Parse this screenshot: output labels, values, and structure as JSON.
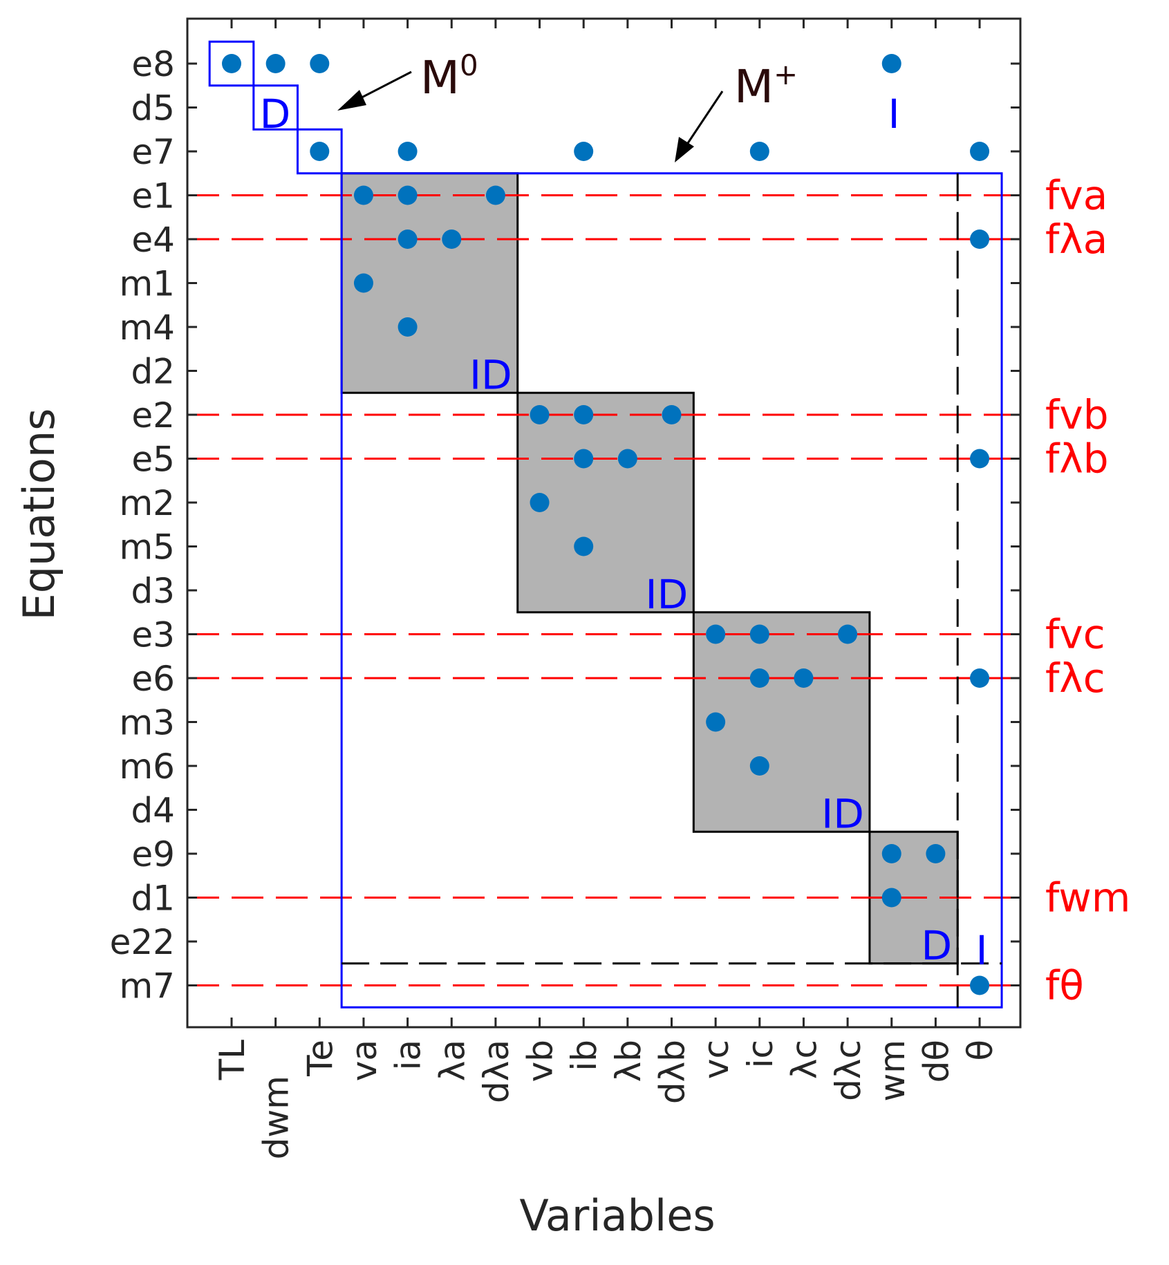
{
  "chart_data": {
    "type": "scatter",
    "title": "",
    "xlabel": "Variables",
    "ylabel": "Equations",
    "variables": [
      "TL",
      "dwm",
      "Te",
      "va",
      "ia",
      "λa",
      "dλa",
      "vb",
      "ib",
      "λb",
      "dλb",
      "vc",
      "ic",
      "λc",
      "dλc",
      "wm",
      "dθ",
      "θ"
    ],
    "equations": [
      "e8",
      "d5",
      "e7",
      "e1",
      "e4",
      "m1",
      "m4",
      "d2",
      "e2",
      "e5",
      "m2",
      "m5",
      "d3",
      "e3",
      "e6",
      "m3",
      "m6",
      "d4",
      "e9",
      "d1",
      "e22",
      "m7"
    ],
    "incidence": [
      {
        "equation": "e8",
        "variable": "TL"
      },
      {
        "equation": "e8",
        "variable": "dwm"
      },
      {
        "equation": "e8",
        "variable": "Te"
      },
      {
        "equation": "e8",
        "variable": "wm"
      },
      {
        "equation": "e7",
        "variable": "Te"
      },
      {
        "equation": "e7",
        "variable": "ia"
      },
      {
        "equation": "e7",
        "variable": "ib"
      },
      {
        "equation": "e7",
        "variable": "ic"
      },
      {
        "equation": "e7",
        "variable": "θ"
      },
      {
        "equation": "e1",
        "variable": "va"
      },
      {
        "equation": "e1",
        "variable": "ia"
      },
      {
        "equation": "e1",
        "variable": "dλa"
      },
      {
        "equation": "e4",
        "variable": "ia"
      },
      {
        "equation": "e4",
        "variable": "λa"
      },
      {
        "equation": "e4",
        "variable": "θ"
      },
      {
        "equation": "m1",
        "variable": "va"
      },
      {
        "equation": "m4",
        "variable": "ia"
      },
      {
        "equation": "e2",
        "variable": "vb"
      },
      {
        "equation": "e2",
        "variable": "ib"
      },
      {
        "equation": "e2",
        "variable": "dλb"
      },
      {
        "equation": "e5",
        "variable": "ib"
      },
      {
        "equation": "e5",
        "variable": "λb"
      },
      {
        "equation": "e5",
        "variable": "θ"
      },
      {
        "equation": "m2",
        "variable": "vb"
      },
      {
        "equation": "m5",
        "variable": "ib"
      },
      {
        "equation": "e3",
        "variable": "vc"
      },
      {
        "equation": "e3",
        "variable": "ic"
      },
      {
        "equation": "e3",
        "variable": "dλc"
      },
      {
        "equation": "e6",
        "variable": "ic"
      },
      {
        "equation": "e6",
        "variable": "λc"
      },
      {
        "equation": "e6",
        "variable": "θ"
      },
      {
        "equation": "m3",
        "variable": "vc"
      },
      {
        "equation": "m6",
        "variable": "ic"
      },
      {
        "equation": "e9",
        "variable": "wm"
      },
      {
        "equation": "e9",
        "variable": "dθ"
      },
      {
        "equation": "d1",
        "variable": "wm"
      },
      {
        "equation": "m7",
        "variable": "θ"
      }
    ],
    "fault_rows": [
      {
        "equation": "e1",
        "label": "fva"
      },
      {
        "equation": "e4",
        "label": "fλa"
      },
      {
        "equation": "e2",
        "label": "fvb"
      },
      {
        "equation": "e5",
        "label": "fλb"
      },
      {
        "equation": "e3",
        "label": "fvc"
      },
      {
        "equation": "e6",
        "label": "fλc"
      },
      {
        "equation": "d1",
        "label": "fwm"
      },
      {
        "equation": "m7",
        "label": "fθ"
      }
    ],
    "blocks": [
      {
        "rows": [
          "e1",
          "d2"
        ],
        "cols": [
          "va",
          "dλa"
        ],
        "label": "ID"
      },
      {
        "rows": [
          "e2",
          "d3"
        ],
        "cols": [
          "vb",
          "dλb"
        ],
        "label": "ID"
      },
      {
        "rows": [
          "e3",
          "d4"
        ],
        "cols": [
          "vc",
          "dλc"
        ],
        "label": "ID"
      },
      {
        "rows": [
          "e9",
          "e22"
        ],
        "cols": [
          "wm",
          "dθ"
        ],
        "label": "D"
      }
    ],
    "annotations": {
      "m0": "M",
      "m0_sup": "0",
      "mplus": "M",
      "mplus_sup": "+",
      "stair_label": "D",
      "integral_label_top": "I",
      "integral_label_bottom": "I"
    },
    "colors": {
      "dot": "#0072bd",
      "fault": "#ff0000",
      "block_fill": "#b3b3b3",
      "boundary": "#0000ff",
      "label_blue": "#0000ff",
      "m_label": "#2a0a0a"
    }
  }
}
